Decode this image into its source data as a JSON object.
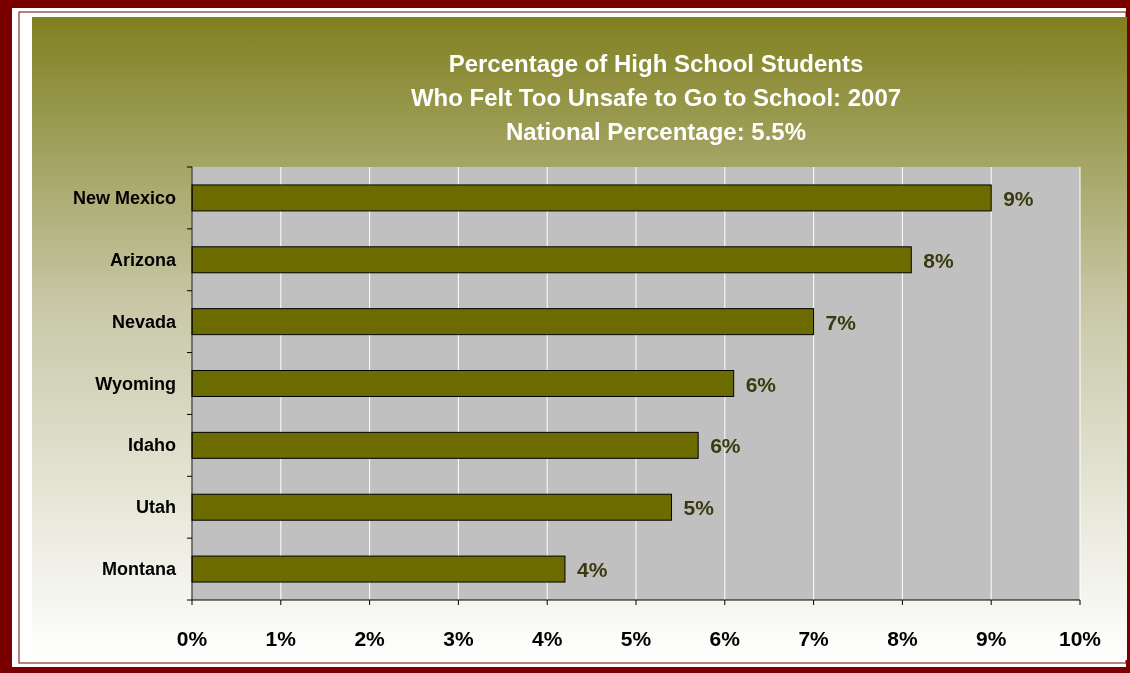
{
  "chart_data": {
    "type": "bar",
    "orientation": "horizontal",
    "title": "Percentage of High School Students\nWho Felt Too Unsafe to Go to School:  2007",
    "subtitle": "National Percentage:  5.5%",
    "categories": [
      "New Mexico",
      "Arizona",
      "Nevada",
      "Wyoming",
      "Idaho",
      "Utah",
      "Montana"
    ],
    "values": [
      9.0,
      8.1,
      7.0,
      6.1,
      5.7,
      5.4,
      4.2
    ],
    "value_labels": [
      "9%",
      "8%",
      "7%",
      "6%",
      "6%",
      "5%",
      "4%"
    ],
    "color": "#6b6b00",
    "xlim": [
      0,
      10
    ],
    "xticks": [
      {
        "value": 0,
        "label": "0%"
      },
      {
        "value": 1,
        "label": "1%"
      },
      {
        "value": 2,
        "label": "2%"
      },
      {
        "value": 3,
        "label": "3%"
      },
      {
        "value": 4,
        "label": "4%"
      },
      {
        "value": 5,
        "label": "5%"
      },
      {
        "value": 6,
        "label": "6%"
      },
      {
        "value": 7,
        "label": "7%"
      },
      {
        "value": 8,
        "label": "8%"
      },
      {
        "value": 9,
        "label": "9%"
      },
      {
        "value": 10,
        "label": "10%"
      }
    ],
    "grid": "x"
  }
}
